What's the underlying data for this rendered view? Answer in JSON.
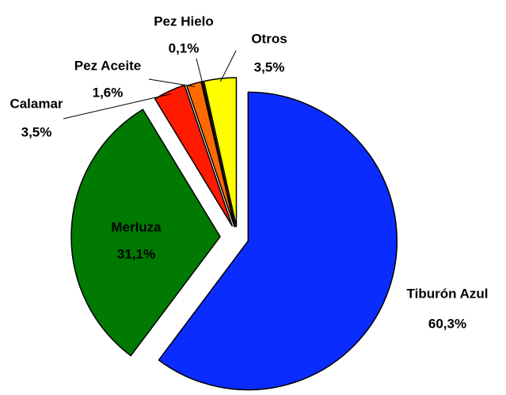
{
  "chart_data": {
    "type": "pie",
    "categories": [
      "Tiburón Azul",
      "Merluza",
      "Calamar",
      "Pez Aceite",
      "Pez Hielo",
      "Otros"
    ],
    "values": [
      60.3,
      31.1,
      3.5,
      1.6,
      0.1,
      3.5
    ],
    "value_labels": [
      "60,3%",
      "31,1%",
      "3,5%",
      "1,6%",
      "0,1%",
      "3,5%"
    ],
    "colors": [
      "#0a2cff",
      "#007a00",
      "#ff1a00",
      "#ff6a00",
      "#ffb000",
      "#ffff00"
    ]
  }
}
